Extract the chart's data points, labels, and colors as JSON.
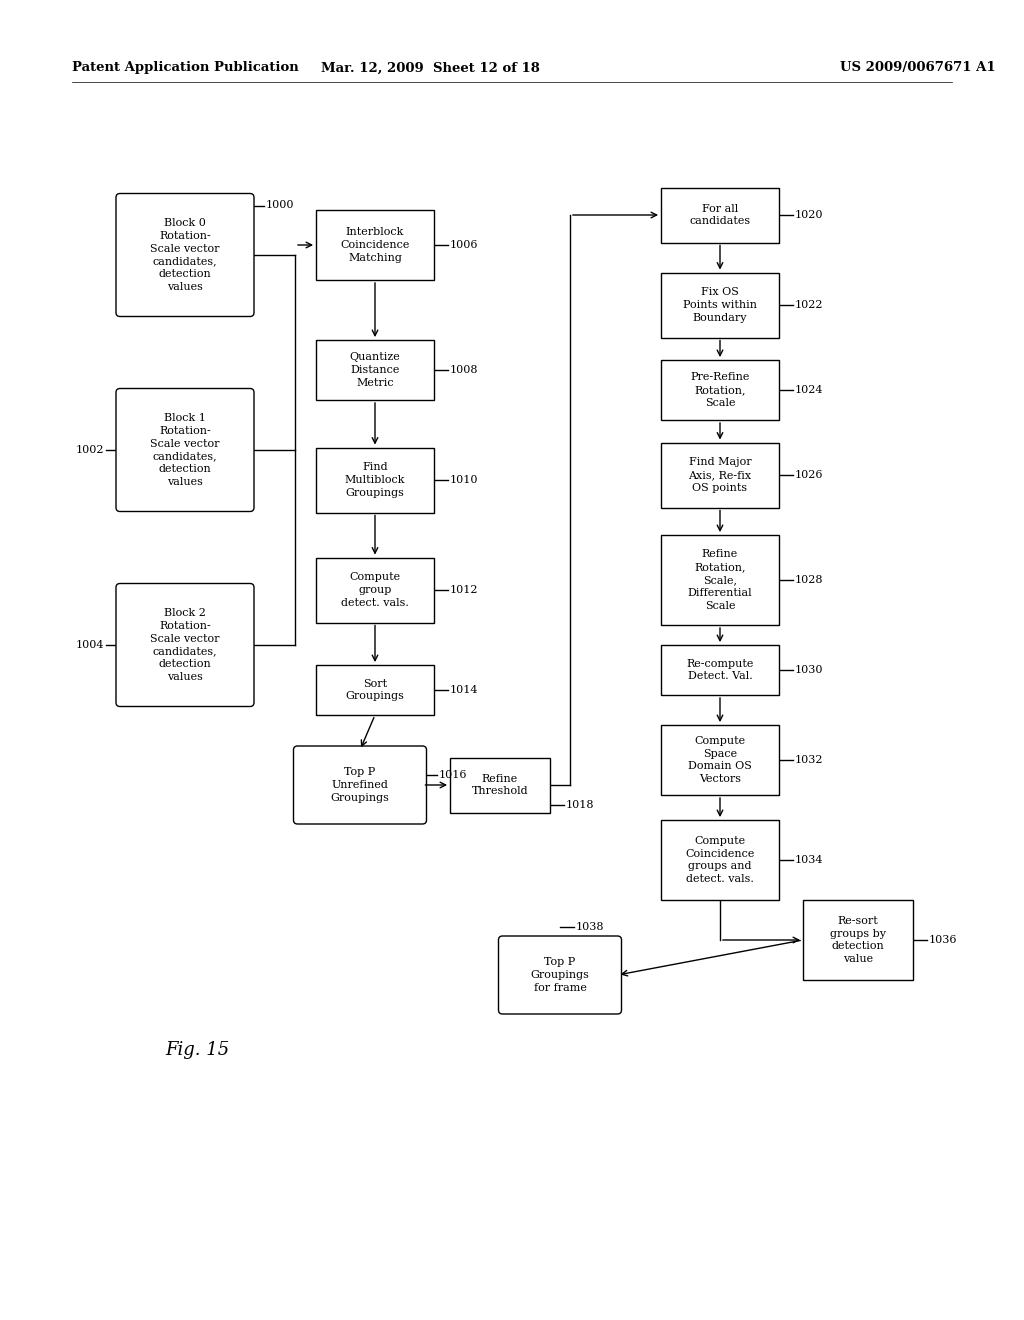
{
  "header_left": "Patent Application Publication",
  "header_mid": "Mar. 12, 2009  Sheet 12 of 18",
  "header_right": "US 2009/0067671 A1",
  "fig_label": "Fig. 15",
  "background": "#ffffff"
}
